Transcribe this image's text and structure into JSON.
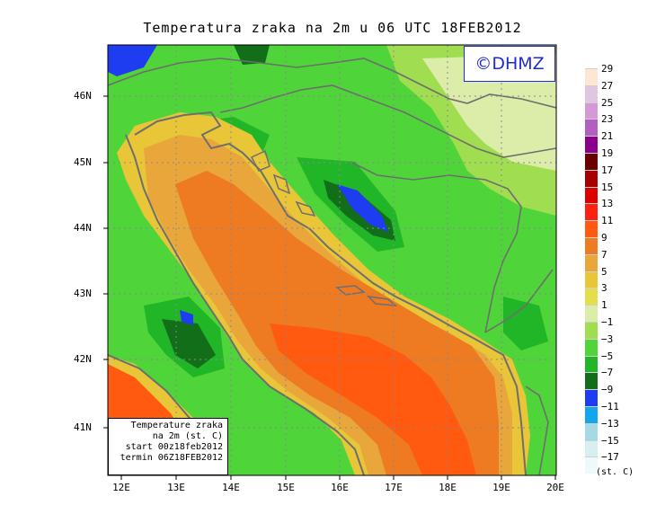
{
  "title": "Temperatura zraka na 2m u 06 UTC 18FEB2012",
  "watermark": "©DHMZ",
  "info_box": {
    "line1": "Temperature zraka",
    "line2": "na 2m (st. C)",
    "line3": "start 00z18feb2012",
    "line4": "termin 06Z18FEB2012"
  },
  "lat_labels": [
    "46N",
    "45N",
    "44N",
    "43N",
    "42N",
    "41N"
  ],
  "lon_labels": [
    "12E",
    "13E",
    "14E",
    "15E",
    "16E",
    "17E",
    "18E",
    "19E",
    "20E"
  ],
  "legend": {
    "unit": "(st. C)",
    "labels": [
      "29",
      "27",
      "25",
      "23",
      "21",
      "19",
      "17",
      "15",
      "13",
      "11",
      "9",
      "7",
      "5",
      "3",
      "1",
      "−1",
      "−3",
      "−5",
      "−7",
      "−9",
      "−11",
      "−13",
      "−15",
      "−17"
    ],
    "colors": [
      "#fde6d2",
      "#e0c6e0",
      "#d49ad6",
      "#b35fc2",
      "#8b008b",
      "#6b0000",
      "#a60000",
      "#dd0000",
      "#ff2010",
      "#ff5a0f",
      "#ee7a22",
      "#e9a63a",
      "#e8c638",
      "#e6dd4a",
      "#dcedaa",
      "#a0dd50",
      "#4fd43a",
      "#21b628",
      "#126e18",
      "#1f3df0",
      "#13a6ef",
      "#a6d9e8",
      "#d6f0f2",
      "#eefafa"
    ]
  },
  "colors": {
    "sea_warm": "#ee7a22",
    "sea_hot": "#ff5a0f",
    "coast_band": "#e8c638",
    "land_mild": "#4fd43a",
    "land_cold": "#126e18",
    "land_frost": "#1f3df0",
    "border_line": "#6e6e6e",
    "watermark": "#1f2bd6"
  }
}
